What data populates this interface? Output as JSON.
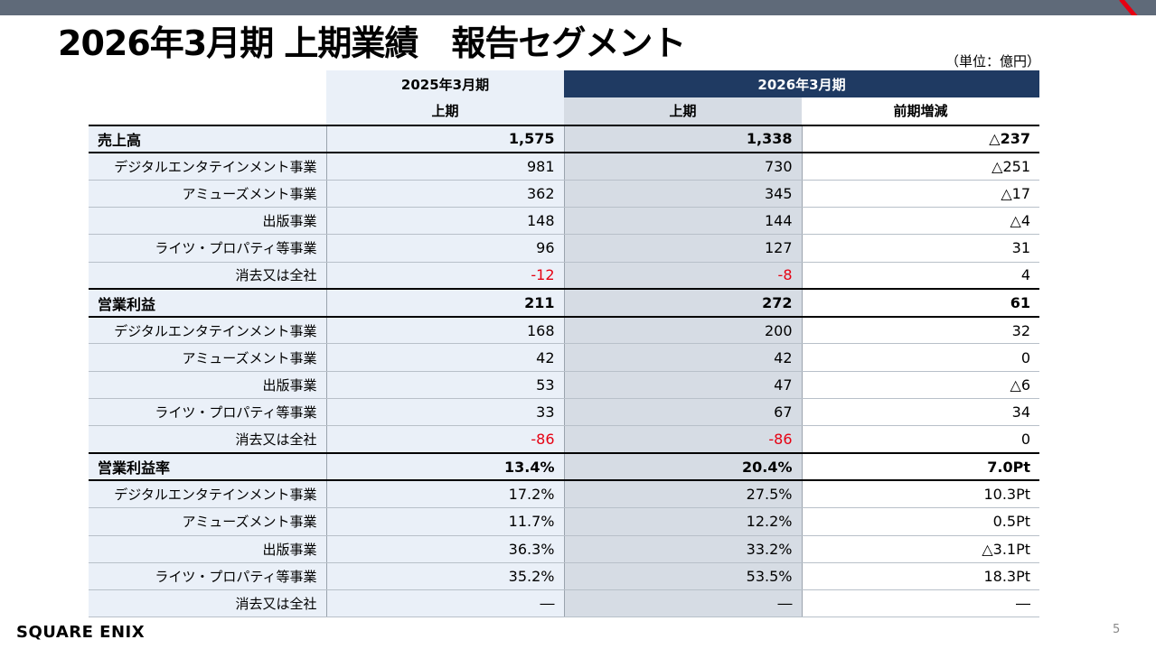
{
  "title": "2026年3月期 上期業績　報告セグメント",
  "unit": "（単位：億円）",
  "header": {
    "prev_year": "2025年3月期",
    "cur_year": "2026年3月期",
    "prev_period": "上期",
    "cur_period": "上期",
    "diff": "前期増減"
  },
  "colors": {
    "accent": "#1f3a62",
    "negative": "#e60012",
    "topbar": "#5f6a79"
  },
  "rows": [
    {
      "label": "売上高",
      "prev": "1,575",
      "cur": "1,338",
      "diff": "△237"
    },
    {
      "label": "デジタルエンタテインメント事業",
      "prev": "981",
      "cur": "730",
      "diff": "△251"
    },
    {
      "label": "アミューズメント事業",
      "prev": "362",
      "cur": "345",
      "diff": "△17"
    },
    {
      "label": "出版事業",
      "prev": "148",
      "cur": "144",
      "diff": "△4"
    },
    {
      "label": "ライツ・プロパティ等事業",
      "prev": "96",
      "cur": "127",
      "diff": "31"
    },
    {
      "label": "消去又は全社",
      "prev": "-12",
      "cur": "-8",
      "diff": "4"
    },
    {
      "label": "営業利益",
      "prev": "211",
      "cur": "272",
      "diff": "61"
    },
    {
      "label": "デジタルエンタテインメント事業",
      "prev": "168",
      "cur": "200",
      "diff": "32"
    },
    {
      "label": "アミューズメント事業",
      "prev": "42",
      "cur": "42",
      "diff": "0"
    },
    {
      "label": "出版事業",
      "prev": "53",
      "cur": "47",
      "diff": "△6"
    },
    {
      "label": "ライツ・プロパティ等事業",
      "prev": "33",
      "cur": "67",
      "diff": "34"
    },
    {
      "label": "消去又は全社",
      "prev": "-86",
      "cur": "-86",
      "diff": "0"
    },
    {
      "label": "営業利益率",
      "prev": "13.4%",
      "cur": "20.4%",
      "diff": "7.0Pt"
    },
    {
      "label": "デジタルエンタテインメント事業",
      "prev": "17.2%",
      "cur": "27.5%",
      "diff": "10.3Pt"
    },
    {
      "label": "アミューズメント事業",
      "prev": "11.7%",
      "cur": "12.2%",
      "diff": "0.5Pt"
    },
    {
      "label": "出版事業",
      "prev": "36.3%",
      "cur": "33.2%",
      "diff": "△3.1Pt"
    },
    {
      "label": "ライツ・プロパティ等事業",
      "prev": "35.2%",
      "cur": "53.5%",
      "diff": "18.3Pt"
    },
    {
      "label": "消去又は全社",
      "prev": "―",
      "cur": "―",
      "diff": "―"
    }
  ],
  "footer": {
    "logo": "SQUARE ENIX",
    "page": "5"
  }
}
